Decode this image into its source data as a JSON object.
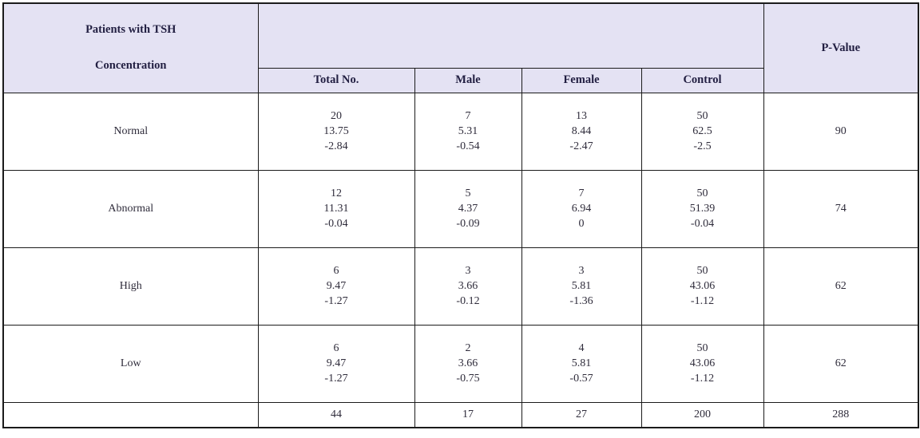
{
  "colors": {
    "header_bg": "#e4e2f3",
    "header_text": "#211e41",
    "body_text": "#2f2c3b",
    "border": "#1b1b1b"
  },
  "header": {
    "title_line1": "Patients with TSH",
    "title_line2": "Concentration",
    "columns": [
      "Total No.",
      "Male",
      "Female",
      "Control"
    ],
    "p_value": "P-Value"
  },
  "rows": [
    {
      "label": "Normal",
      "total": [
        "20",
        "13.75",
        "-2.84"
      ],
      "male": [
        "7",
        "5.31",
        "-0.54"
      ],
      "female": [
        "13",
        "8.44",
        "-2.47"
      ],
      "control": [
        "50",
        "62.5",
        "-2.5"
      ],
      "p": "90"
    },
    {
      "label": "Abnormal",
      "total": [
        "12",
        "11.31",
        "-0.04"
      ],
      "male": [
        "5",
        "4.37",
        "-0.09"
      ],
      "female": [
        "7",
        "6.94",
        "0"
      ],
      "control": [
        "50",
        "51.39",
        "-0.04"
      ],
      "p": "74"
    },
    {
      "label": "High",
      "total": [
        "6",
        "9.47",
        "-1.27"
      ],
      "male": [
        "3",
        "3.66",
        "-0.12"
      ],
      "female": [
        "3",
        "5.81",
        "-1.36"
      ],
      "control": [
        "50",
        "43.06",
        "-1.12"
      ],
      "p": "62"
    },
    {
      "label": "Low",
      "total": [
        "6",
        "9.47",
        "-1.27"
      ],
      "male": [
        "2",
        "3.66",
        "-0.75"
      ],
      "female": [
        "4",
        "5.81",
        "-0.57"
      ],
      "control": [
        "50",
        "43.06",
        "-1.12"
      ],
      "p": "62"
    }
  ],
  "totals": {
    "label": "",
    "total": "44",
    "male": "17",
    "female": "27",
    "control": "200",
    "p": "288"
  }
}
